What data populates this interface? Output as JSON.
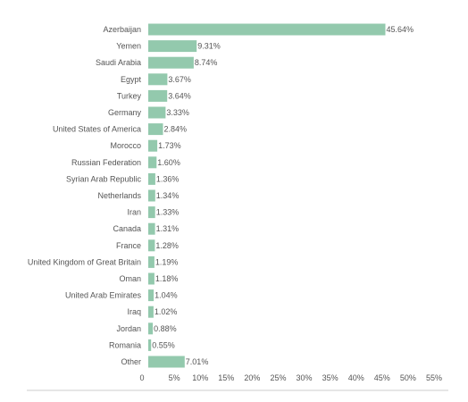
{
  "chart_data": {
    "type": "bar",
    "orientation": "horizontal",
    "categories": [
      "Azerbaijan",
      "Yemen",
      "Saudi Arabia",
      "Egypt",
      "Turkey",
      "Germany",
      "United States of America",
      "Morocco",
      "Russian Federation",
      "Syrian Arab Republic",
      "Netherlands",
      "Iran",
      "Canada",
      "France",
      "United Kingdom of Great Britain",
      "Oman",
      "United Arab Emirates",
      "Iraq",
      "Jordan",
      "Romania",
      "Other"
    ],
    "values": [
      45.64,
      9.31,
      8.74,
      3.67,
      3.64,
      3.33,
      2.84,
      1.73,
      1.6,
      1.36,
      1.34,
      1.33,
      1.31,
      1.28,
      1.19,
      1.18,
      1.04,
      1.02,
      0.88,
      0.55,
      7.01
    ],
    "value_labels": [
      "45.64%",
      "9.31%",
      "8.74%",
      "3.67%",
      "3.64%",
      "3.33%",
      "2.84%",
      "1.73%",
      "1.60%",
      "1.36%",
      "1.34%",
      "1.33%",
      "1.31%",
      "1.28%",
      "1.19%",
      "1.18%",
      "1.04%",
      "1.02%",
      "0.88%",
      "0.55%",
      "7.01%"
    ],
    "xlim": [
      0,
      55
    ],
    "xticks": [
      0,
      5,
      10,
      15,
      20,
      25,
      30,
      35,
      40,
      45,
      50,
      55
    ],
    "xtick_labels": [
      "0",
      "5%",
      "10%",
      "15%",
      "20%",
      "25%",
      "30%",
      "35%",
      "40%",
      "45%",
      "50%",
      "55%"
    ],
    "title": "",
    "xlabel": "",
    "ylabel": "",
    "grid": false,
    "legend": "none",
    "bar_color": "#93c9ad",
    "text_color": "#555555",
    "axis_color": "#cccccc"
  }
}
